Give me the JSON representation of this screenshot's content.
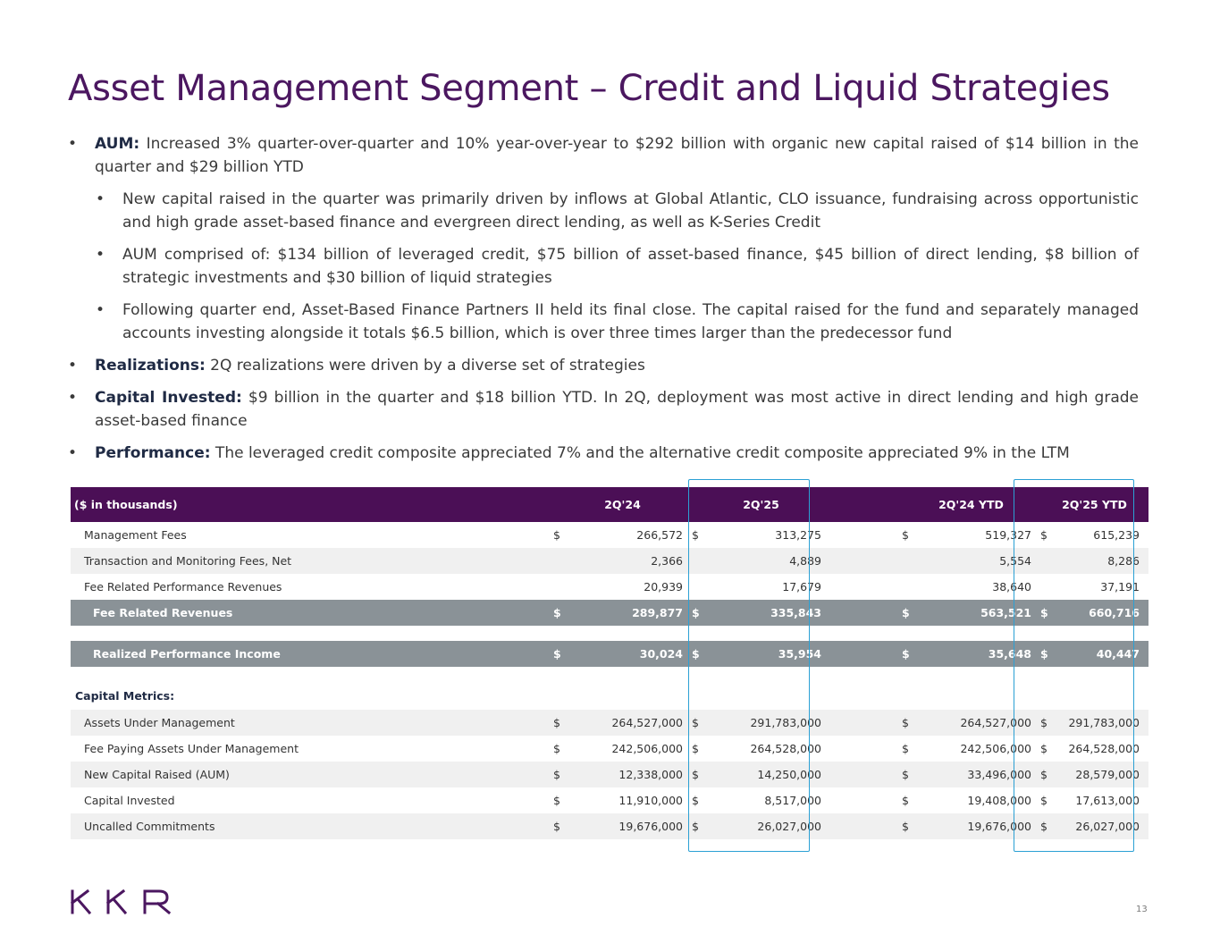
{
  "title": "Asset Management Segment – Credit and Liquid Strategies",
  "bullets": [
    {
      "bold": "AUM:",
      "text": " Increased 3% quarter-over-quarter and 10% year-over-year to $292 billion with organic new capital raised of $14 billion in the quarter and $29 billion YTD"
    },
    {
      "sub": "New capital raised in the quarter was primarily driven by inflows at Global Atlantic, CLO issuance, fundraising across opportunistic and high grade asset-based finance and evergreen direct lending, as well as K-Series Credit"
    },
    {
      "sub": "AUM comprised of: $134 billion of leveraged credit, $75 billion of asset-based finance, $45 billion of direct lending, $8 billion of strategic investments and $30 billion of liquid strategies"
    },
    {
      "sub": "Following quarter end, Asset-Based Finance Partners II held its final close. The capital raised for the fund and separately managed accounts investing alongside it totals $6.5 billion, which is over three times larger than the predecessor fund"
    },
    {
      "bold": "Realizations:",
      "text": " 2Q realizations were driven by a diverse set of strategies"
    },
    {
      "bold": "Capital Invested:",
      "text": " $9 billion in the quarter and $18 billion YTD. In 2Q, deployment was most active in direct lending and high grade asset-based finance"
    },
    {
      "bold": "Performance:",
      "text": " The leveraged credit composite appreciated 7% and the alternative credit composite appreciated 9% in the LTM"
    }
  ],
  "bullet_symbol": "•",
  "table": {
    "header": [
      "($ in thousands)",
      "2Q'24",
      "2Q'25",
      "2Q'24 YTD",
      "2Q'25 YTD"
    ],
    "currency": "$",
    "rows": [
      {
        "label": "Management Fees",
        "values": [
          "266,572",
          "313,275",
          "519,327",
          "615,239"
        ]
      },
      {
        "label": "Transaction and Monitoring Fees, Net",
        "values": [
          "2,366",
          "4,889",
          "5,554",
          "8,286"
        ]
      },
      {
        "label": "Fee Related Performance Revenues",
        "values": [
          "20,939",
          "17,679",
          "38,640",
          "37,191"
        ]
      },
      {
        "label": "Fee Related Revenues",
        "values": [
          "289,877",
          "335,843",
          "563,521",
          "660,716"
        ]
      },
      {
        "label": "Realized Performance Income",
        "values": [
          "30,024",
          "35,954",
          "35,648",
          "40,447"
        ]
      }
    ],
    "capital_metrics_label": "Capital Metrics:",
    "capital_rows": [
      {
        "label": "Assets Under Management",
        "values": [
          "264,527,000",
          "291,783,000",
          "264,527,000",
          "291,783,000"
        ]
      },
      {
        "label": "Fee Paying Assets Under Management",
        "values": [
          "242,506,000",
          "264,528,000",
          "242,506,000",
          "264,528,000"
        ]
      },
      {
        "label": "New Capital Raised (AUM)",
        "values": [
          "12,338,000",
          "14,250,000",
          "33,496,000",
          "28,579,000"
        ]
      },
      {
        "label": "Capital Invested",
        "values": [
          "11,910,000",
          "8,517,000",
          "19,408,000",
          "17,613,000"
        ]
      },
      {
        "label": "Uncalled Commitments",
        "values": [
          "19,676,000",
          "26,027,000",
          "19,676,000",
          "26,027,000"
        ]
      }
    ]
  },
  "logo_text": "KKR",
  "page_number": "13",
  "colors": {
    "brand_purple": "#4b0f56",
    "title_purple": "#4b1760",
    "summary_gray": "#8a9297",
    "highlight_blue": "#2ba0d4"
  }
}
